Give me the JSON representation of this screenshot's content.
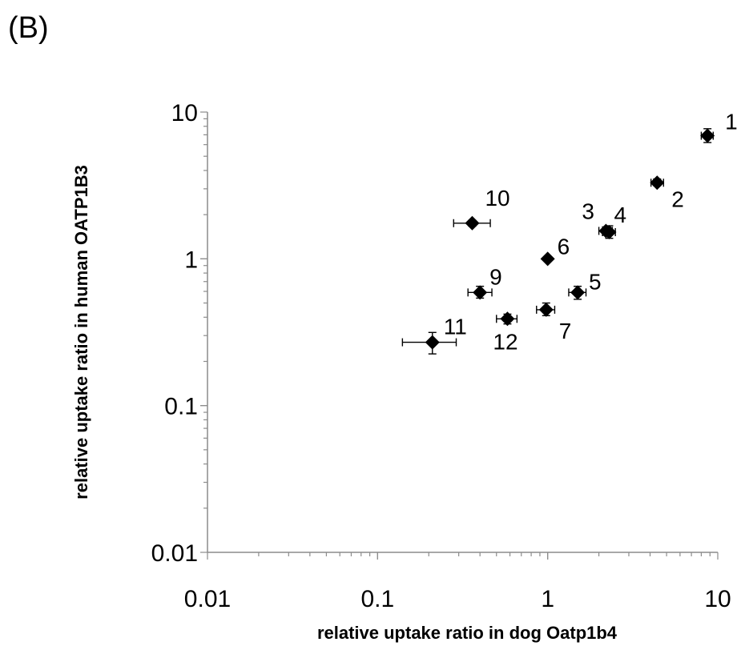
{
  "panel_label": "(B)",
  "chart_data": {
    "type": "scatter",
    "title": "",
    "xlabel": "relative uptake ratio in dog Oatp1b4",
    "ylabel": "relative uptake ratio in human OATP1B3",
    "xscale": "log",
    "yscale": "log",
    "xlim": [
      0.01,
      10
    ],
    "ylim": [
      0.01,
      10
    ],
    "x_ticks": [
      0.01,
      0.1,
      1,
      10
    ],
    "x_tick_labels": [
      "0.01",
      "0.1",
      "1",
      "10"
    ],
    "y_ticks": [
      0.01,
      0.1,
      1,
      10
    ],
    "y_tick_labels": [
      "0.01",
      "0.1",
      "1",
      "10"
    ],
    "grid": false,
    "legend": "none",
    "marker": "diamond",
    "color": "#000000",
    "points": [
      {
        "label": "1",
        "x": 8.7,
        "y": 6.9,
        "x_err": [
          8.0,
          9.4
        ],
        "y_err": [
          6.2,
          7.7
        ]
      },
      {
        "label": "2",
        "x": 4.4,
        "y": 3.3,
        "x_err": [
          4.05,
          4.8
        ],
        "y_err": [
          3.15,
          3.5
        ]
      },
      {
        "label": "3",
        "x": 2.2,
        "y": 1.55,
        "x_err": [
          2.0,
          2.4
        ],
        "y_err": [
          1.45,
          1.65
        ]
      },
      {
        "label": "4",
        "x": 2.3,
        "y": 1.52,
        "x_err": [
          2.1,
          2.5
        ],
        "y_err": [
          1.38,
          1.68
        ]
      },
      {
        "label": "5",
        "x": 1.5,
        "y": 0.59,
        "x_err": [
          1.33,
          1.68
        ],
        "y_err": [
          0.53,
          0.65
        ]
      },
      {
        "label": "6",
        "x": 1.0,
        "y": 1.0,
        "x_err": [
          1.0,
          1.0
        ],
        "y_err": [
          1.0,
          1.0
        ]
      },
      {
        "label": "7",
        "x": 0.98,
        "y": 0.45,
        "x_err": [
          0.86,
          1.1
        ],
        "y_err": [
          0.41,
          0.5
        ]
      },
      {
        "label": "9",
        "x": 0.4,
        "y": 0.59,
        "x_err": [
          0.34,
          0.47
        ],
        "y_err": [
          0.54,
          0.65
        ]
      },
      {
        "label": "10",
        "x": 0.36,
        "y": 1.75,
        "x_err": [
          0.28,
          0.46
        ],
        "y_err": [
          1.67,
          1.83
        ]
      },
      {
        "label": "11",
        "x": 0.21,
        "y": 0.27,
        "x_err": [
          0.14,
          0.29
        ],
        "y_err": [
          0.225,
          0.315
        ]
      },
      {
        "label": "12",
        "x": 0.58,
        "y": 0.39,
        "x_err": [
          0.5,
          0.66
        ],
        "y_err": [
          0.36,
          0.42
        ]
      }
    ]
  }
}
